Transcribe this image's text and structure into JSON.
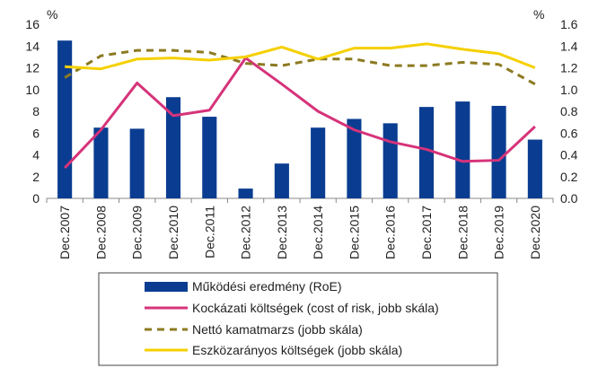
{
  "chart_data": {
    "type": "bar",
    "title": "",
    "xlabel": "",
    "ylabel_left": "%",
    "ylabel_right": "%",
    "categories": [
      "Dec.2007",
      "Dec.2008",
      "Dec.2009",
      "Dec.2010",
      "Dec.2011",
      "Dec.2012",
      "Dec.2013",
      "Dec.2014",
      "Dec.2015",
      "Dec.2016",
      "Dec.2017",
      "Dec.2018",
      "Dec.2019",
      "Dec.2020"
    ],
    "y_left": {
      "min": 0,
      "max": 16,
      "ticks": [
        0,
        2,
        4,
        6,
        8,
        10,
        12,
        14,
        16
      ],
      "tick_labels": [
        "0",
        "2",
        "4",
        "6",
        "8",
        "10",
        "12",
        "14",
        "16"
      ]
    },
    "y_right": {
      "min": 0,
      "max": 1.6,
      "ticks": [
        0,
        0.2,
        0.4,
        0.6,
        0.8,
        1.0,
        1.2,
        1.4,
        1.6
      ],
      "tick_labels": [
        "0.0",
        "0.2",
        "0.4",
        "0.6",
        "0.8",
        "1.0",
        "1.2",
        "1.4",
        "1.6"
      ]
    },
    "grid": false,
    "legend_position": "bottom",
    "series": [
      {
        "name": "Működési eredmény (RoE)",
        "type": "bar",
        "axis": "left",
        "color": "#0a3d91",
        "values": [
          14.5,
          6.5,
          6.4,
          9.3,
          7.5,
          0.9,
          3.2,
          6.5,
          7.3,
          6.9,
          8.4,
          8.9,
          8.5,
          5.4
        ]
      },
      {
        "name": "Kockázati költségek (cost of risk, jobb skála)",
        "type": "line",
        "axis": "right",
        "color": "#d6337a",
        "dash": "solid",
        "values": [
          0.28,
          0.63,
          1.06,
          0.76,
          0.81,
          1.29,
          1.05,
          0.8,
          0.63,
          0.52,
          0.45,
          0.34,
          0.35,
          0.66
        ]
      },
      {
        "name": "Nettó kamatmarzs (jobb skála)",
        "type": "line",
        "axis": "right",
        "color": "#8c7a21",
        "dash": "dashed",
        "values": [
          1.11,
          1.31,
          1.36,
          1.36,
          1.34,
          1.24,
          1.22,
          1.28,
          1.28,
          1.22,
          1.22,
          1.25,
          1.23,
          1.05
        ]
      },
      {
        "name": "Eszközarányos költségek (jobb skála)",
        "type": "line",
        "axis": "right",
        "color": "#f5d000",
        "dash": "solid",
        "values": [
          1.21,
          1.19,
          1.28,
          1.29,
          1.27,
          1.3,
          1.39,
          1.28,
          1.38,
          1.38,
          1.42,
          1.37,
          1.33,
          1.2
        ]
      }
    ]
  }
}
